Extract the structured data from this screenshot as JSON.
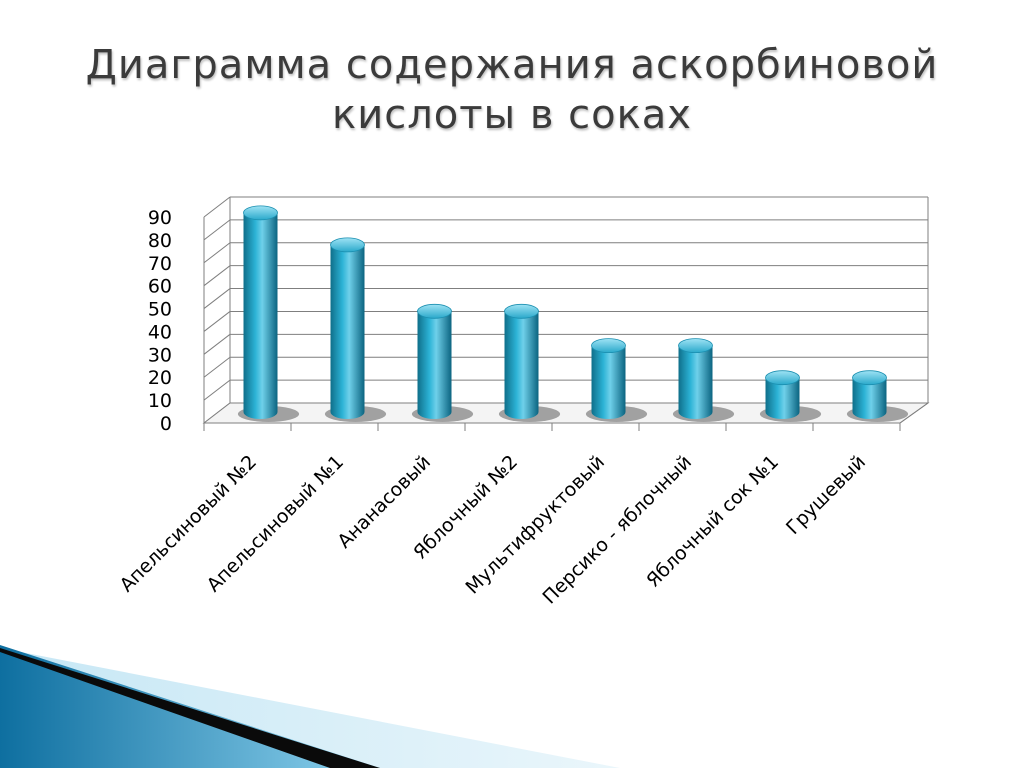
{
  "slide": {
    "title_line1": "Диаграмма содержания аскорбиновой",
    "title_line2": "кислоты в соках"
  },
  "colors": {
    "bar": "#1f9fc2",
    "bar_dark": "#0d6f8c",
    "bar_light": "#7fd6ee",
    "grid": "#7f7f7f"
  },
  "chart_data": {
    "type": "bar",
    "title": "Диаграмма содержания аскорбиновой кислоты в соках",
    "categories": [
      "Апельсиновый №2",
      "Апельсиновый №1",
      "Ананасовый",
      "Яблочный №2",
      "Мультифруктовый",
      "Персико - яблочный",
      "Яблочный сок №1",
      "Грушевый"
    ],
    "values": [
      87,
      73,
      44,
      44,
      29,
      29,
      15,
      15
    ],
    "ylim": [
      0,
      90
    ],
    "yticks": [
      "0",
      "10",
      "20",
      "30",
      "40",
      "50",
      "60",
      "70",
      "80",
      "90"
    ],
    "xlabel": "",
    "ylabel": "",
    "grid": true,
    "legend": "none",
    "style": "3d-cylinder"
  }
}
